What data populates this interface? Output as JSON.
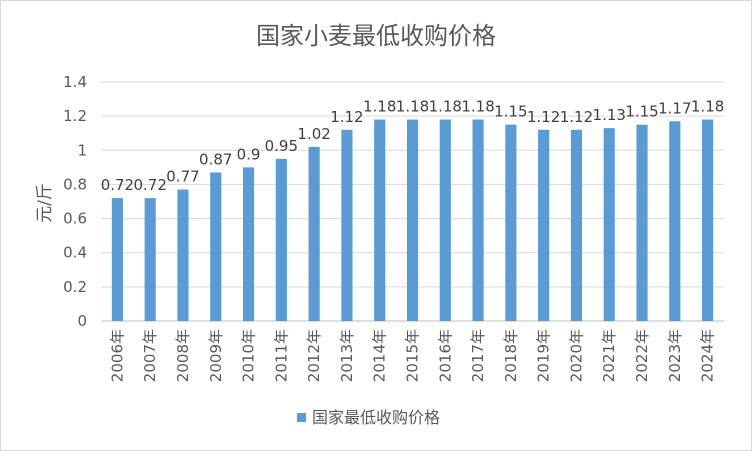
{
  "chart_data": {
    "type": "bar",
    "title": "国家小麦最低收购价格",
    "ylabel": "元/斤",
    "xlabel": "",
    "categories": [
      "2006年",
      "2007年",
      "2008年",
      "2009年",
      "2010年",
      "2011年",
      "2012年",
      "2013年",
      "2014年",
      "2015年",
      "2016年",
      "2017年",
      "2018年",
      "2019年",
      "2020年",
      "2021年",
      "2022年",
      "2023年",
      "2024年"
    ],
    "series": [
      {
        "name": "国家最低收购价格",
        "values": [
          0.72,
          0.72,
          0.77,
          0.87,
          0.9,
          0.95,
          1.02,
          1.12,
          1.18,
          1.18,
          1.18,
          1.18,
          1.15,
          1.12,
          1.12,
          1.13,
          1.15,
          1.17,
          1.18
        ],
        "color": "#5b9bd5"
      }
    ],
    "ylim": [
      0,
      1.4
    ],
    "yticks": [
      "0",
      "0.2",
      "0.4",
      "0.6",
      "0.8",
      "1",
      "1.2",
      "1.4"
    ],
    "grid": true,
    "legend": "bottom"
  }
}
